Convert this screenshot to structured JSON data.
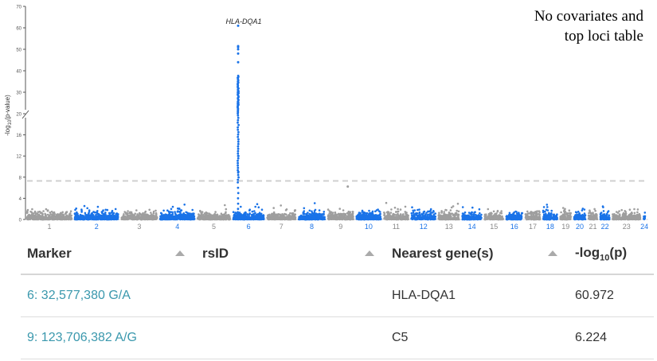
{
  "caption": [
    "No covariates and",
    "top loci table"
  ],
  "chart_data": {
    "type": "scatter",
    "subtype": "manhattan",
    "ylabel_prefix": "-log",
    "ylabel_sub": "10",
    "ylabel_suffix": "(p-value)",
    "y_ticks_lower": [
      0,
      4,
      8,
      12,
      16,
      20
    ],
    "y_ticks_upper": [
      30,
      40,
      50,
      60,
      70
    ],
    "y_axis_break": 20,
    "significance_threshold": 7.3,
    "chromosomes": [
      "1",
      "2",
      "3",
      "4",
      "5",
      "6",
      "7",
      "8",
      "9",
      "10",
      "11",
      "12",
      "13",
      "14",
      "15",
      "16",
      "17",
      "18",
      "19",
      "20",
      "21",
      "22",
      "23",
      "24"
    ],
    "chromosome_colors": {
      "odd": "#9e9e9e",
      "even": "#1a73e8"
    },
    "peak": {
      "chromosome": "6",
      "gene": "HLA-DQA1",
      "max_neglog10p": 60.972
    },
    "secondary_hit": {
      "chromosome": "9",
      "gene": "C5",
      "neglog10p": 6.224
    }
  },
  "table": {
    "headers": {
      "marker": "Marker",
      "rsid": "rsID",
      "gene": "Nearest gene(s)",
      "logp_prefix": "-log",
      "logp_sub": "10",
      "logp_suffix": "(p)"
    },
    "rows": [
      {
        "marker": "6: 32,577,380 G/A",
        "rsid": "",
        "gene": "HLA-DQA1",
        "logp": "60.972"
      },
      {
        "marker": "9: 123,706,382 A/G",
        "rsid": "",
        "gene": "C5",
        "logp": "6.224"
      }
    ]
  }
}
